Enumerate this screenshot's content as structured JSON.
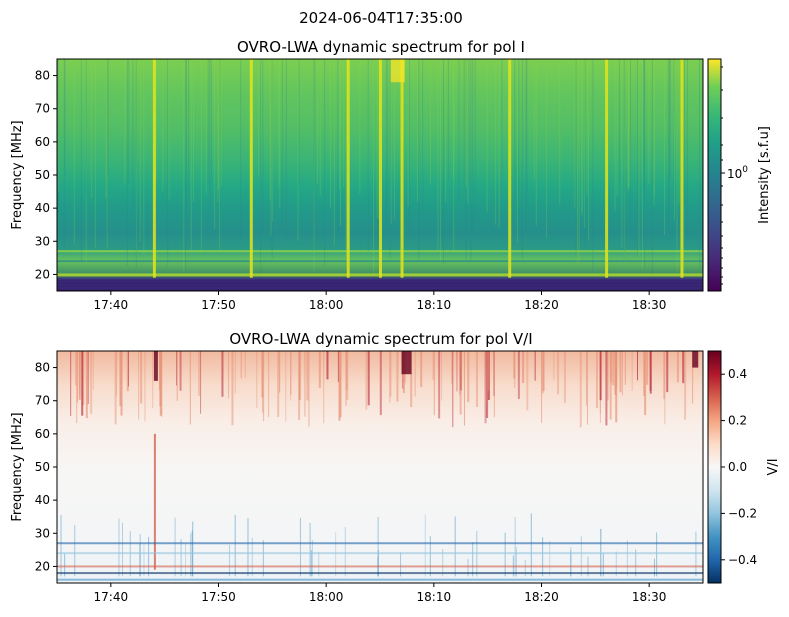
{
  "figure": {
    "suptitle": "2024-06-04T17:35:00"
  },
  "chart_data": [
    {
      "type": "heatmap",
      "title": "OVRO-LWA dynamic spectrum for pol I",
      "xlabel": "",
      "ylabel": "Frequency [MHz]",
      "x_range": [
        "17:35",
        "18:35"
      ],
      "ylim": [
        15,
        85
      ],
      "xticks": [
        "17:40",
        "17:50",
        "18:00",
        "18:10",
        "18:20",
        "18:30"
      ],
      "yticks": [
        20,
        30,
        40,
        50,
        60,
        70,
        80
      ],
      "colormap": "viridis",
      "colorbar": {
        "label": "Intensity [s.f.u]",
        "scale": "log",
        "tick_label": "10^0",
        "tick_value": 1
      },
      "features": {
        "background_trend": "intensity increases with frequency: dark purple below ~18 MHz, teal 30-45 MHz, green 50-85 MHz",
        "rfi_bands_mhz": [
          16,
          17,
          18,
          20,
          24,
          27
        ],
        "bright_bursts": [
          "17:44",
          "17:53",
          "18:02",
          "18:05",
          "18:07",
          "18:17",
          "18:26",
          "18:33"
        ]
      }
    },
    {
      "type": "heatmap",
      "title": "OVRO-LWA dynamic spectrum for pol V/I",
      "xlabel": "",
      "ylabel": "Frequency [MHz]",
      "x_range": [
        "17:35",
        "18:35"
      ],
      "ylim": [
        15,
        85
      ],
      "xticks": [
        "17:40",
        "17:50",
        "18:00",
        "18:10",
        "18:20",
        "18:30"
      ],
      "yticks": [
        20,
        30,
        40,
        50,
        60,
        70,
        80
      ],
      "colormap": "RdBu_r",
      "colorbar": {
        "label": "V/I",
        "scale": "linear",
        "range": [
          -0.5,
          0.5
        ],
        "ticks": [
          0.4,
          0.2,
          0.0,
          -0.2,
          -0.4
        ],
        "tick_labels": [
          "0.4",
          "0.2",
          "0.0",
          "−0.2",
          "−0.4"
        ]
      },
      "features": {
        "background": "near zero (white) across most of the band",
        "positive_regions": "red at 70-85 MHz, darkest around 18:07-18:09 and at 17:44",
        "negative_regions": "blue streaks near 17-35 MHz"
      }
    }
  ],
  "colors": {
    "viridis_low": "#440154",
    "viridis_mid": "#21918c",
    "viridis_high": "#fde725",
    "rdbu_neg": "#053061",
    "rdbu_pos": "#67001f"
  }
}
